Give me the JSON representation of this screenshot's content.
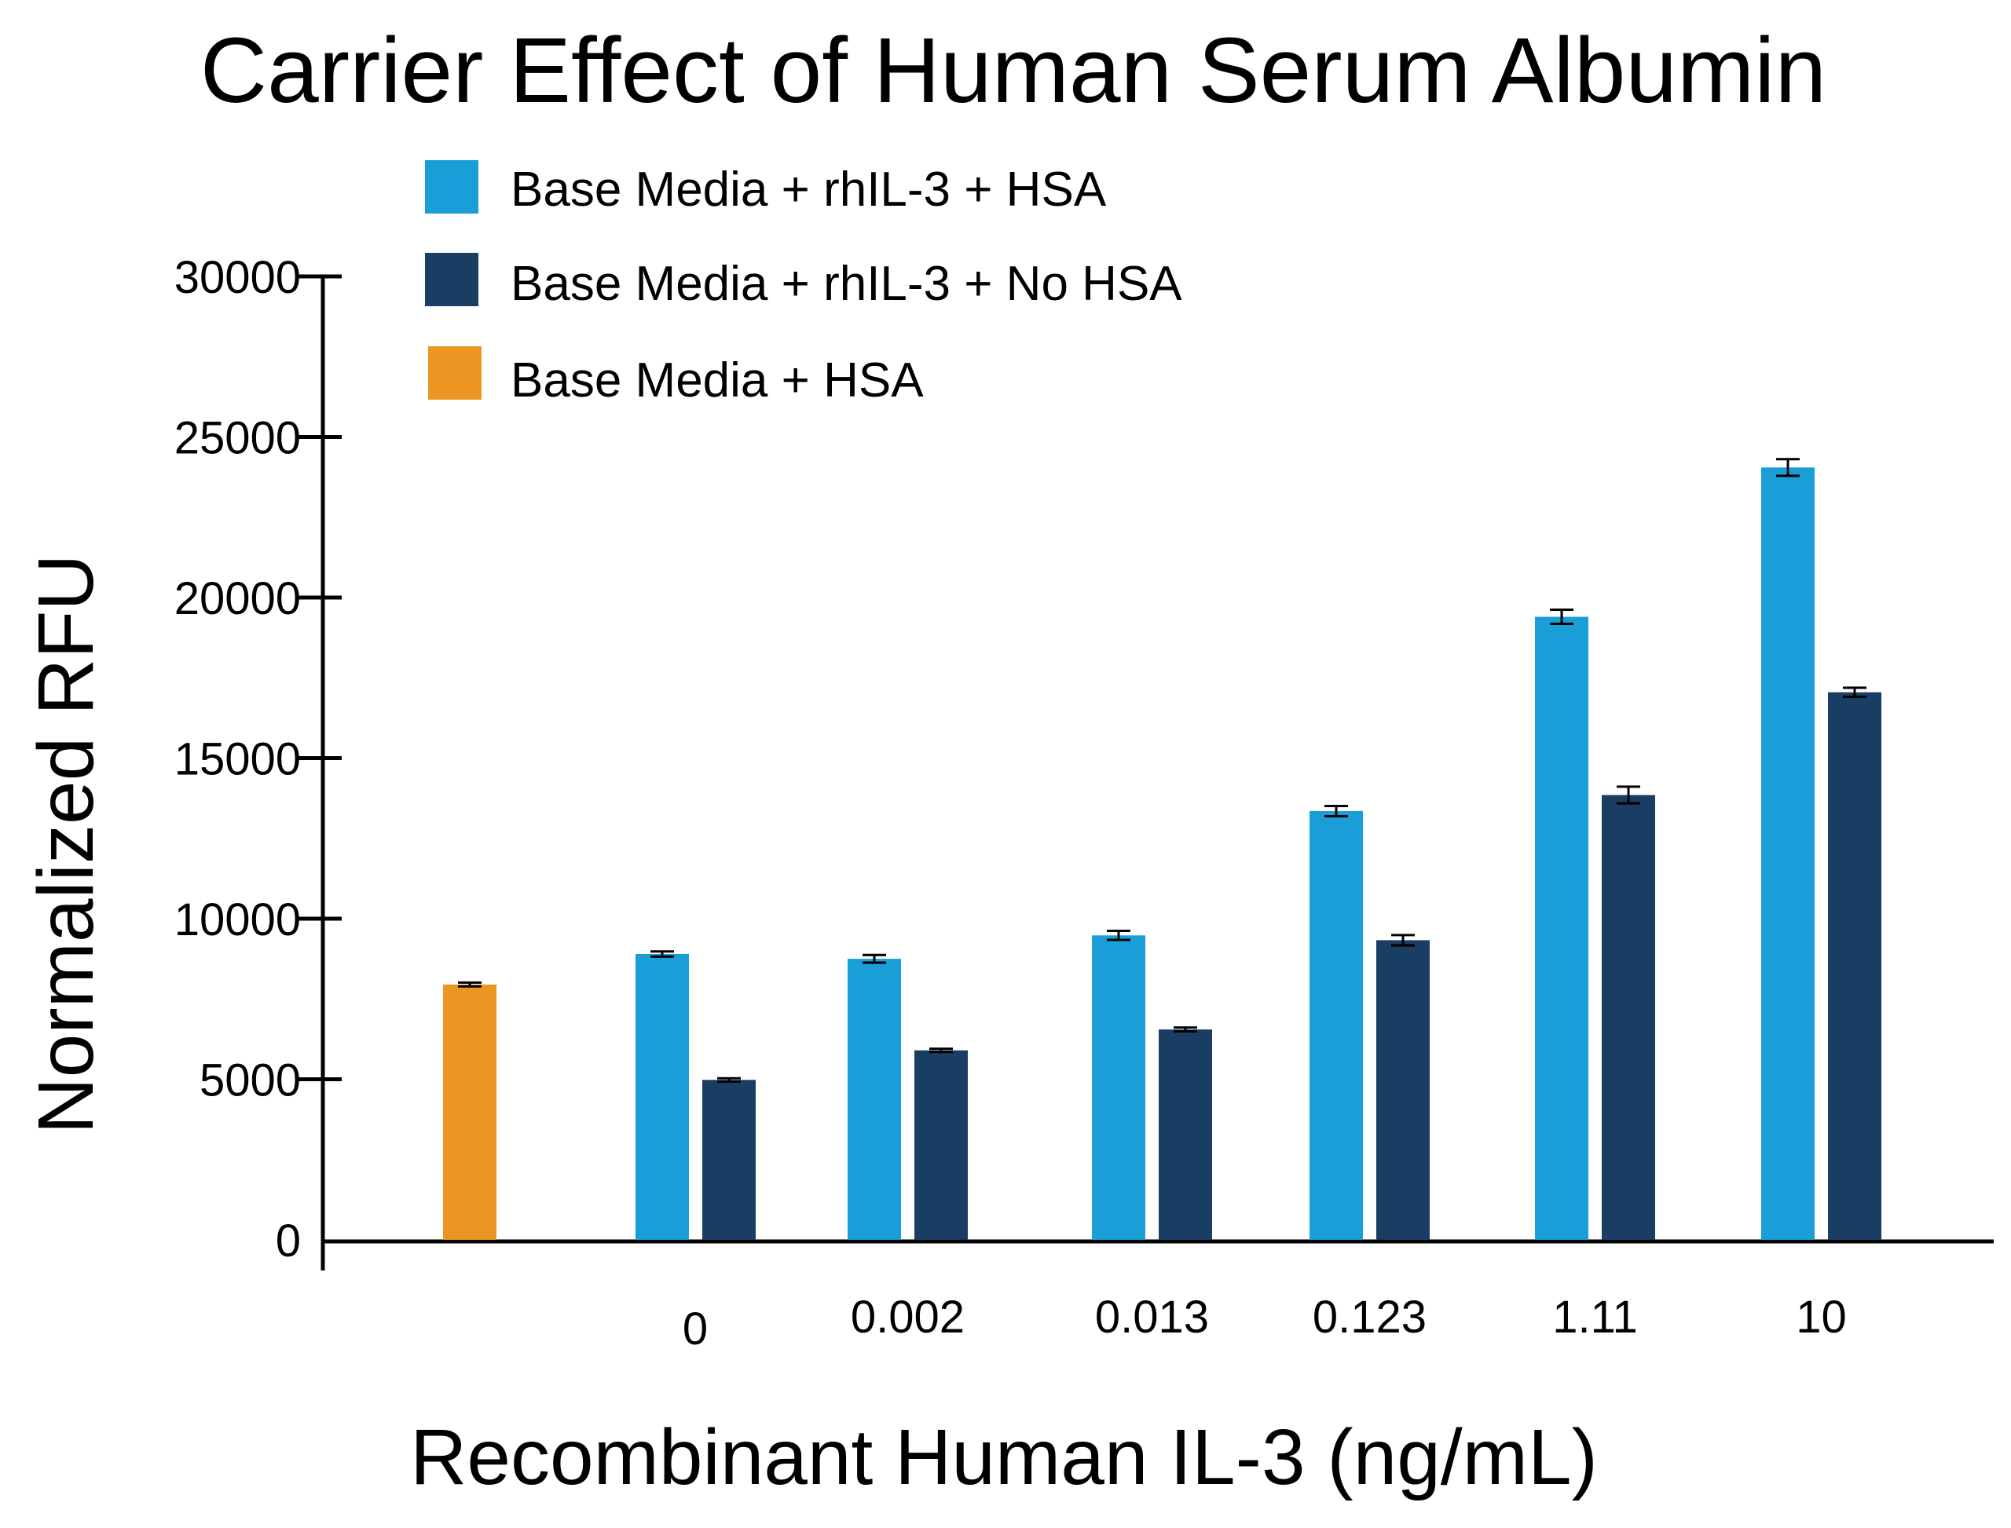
{
  "chart_data": {
    "type": "bar",
    "title": "Carrier Effect of Human Serum Albumin",
    "xlabel": "Recombinant Human IL-3 (ng/mL)",
    "ylabel": "Normalized RFU",
    "ylim": [
      0,
      30000
    ],
    "yticks": [
      0,
      5000,
      10000,
      15000,
      20000,
      25000,
      30000
    ],
    "yticks_labels": [
      "0",
      "5000",
      "10000",
      "15000",
      "20000",
      "25000",
      "30000"
    ],
    "categories": [
      "0",
      "0.002",
      "0.013",
      "0.123",
      "1.11",
      "10"
    ],
    "legend_position": "top-left",
    "grid": false,
    "series": [
      {
        "name": "Base Media + rhIL-3 + HSA",
        "color": "#1a9ed8",
        "values": [
          8900,
          8750,
          9480,
          13350,
          19400,
          24050
        ],
        "errors": [
          80,
          120,
          140,
          160,
          220,
          260
        ]
      },
      {
        "name": "Base Media + rhIL-3 + No HSA",
        "color": "#1a3d63",
        "values": [
          4980,
          5900,
          6550,
          9330,
          13850,
          17050
        ],
        "errors": [
          50,
          50,
          60,
          160,
          260,
          140
        ]
      }
    ],
    "control": {
      "name": "Base Media + HSA",
      "color": "#eb9622",
      "value": 7950,
      "error": 60
    }
  }
}
